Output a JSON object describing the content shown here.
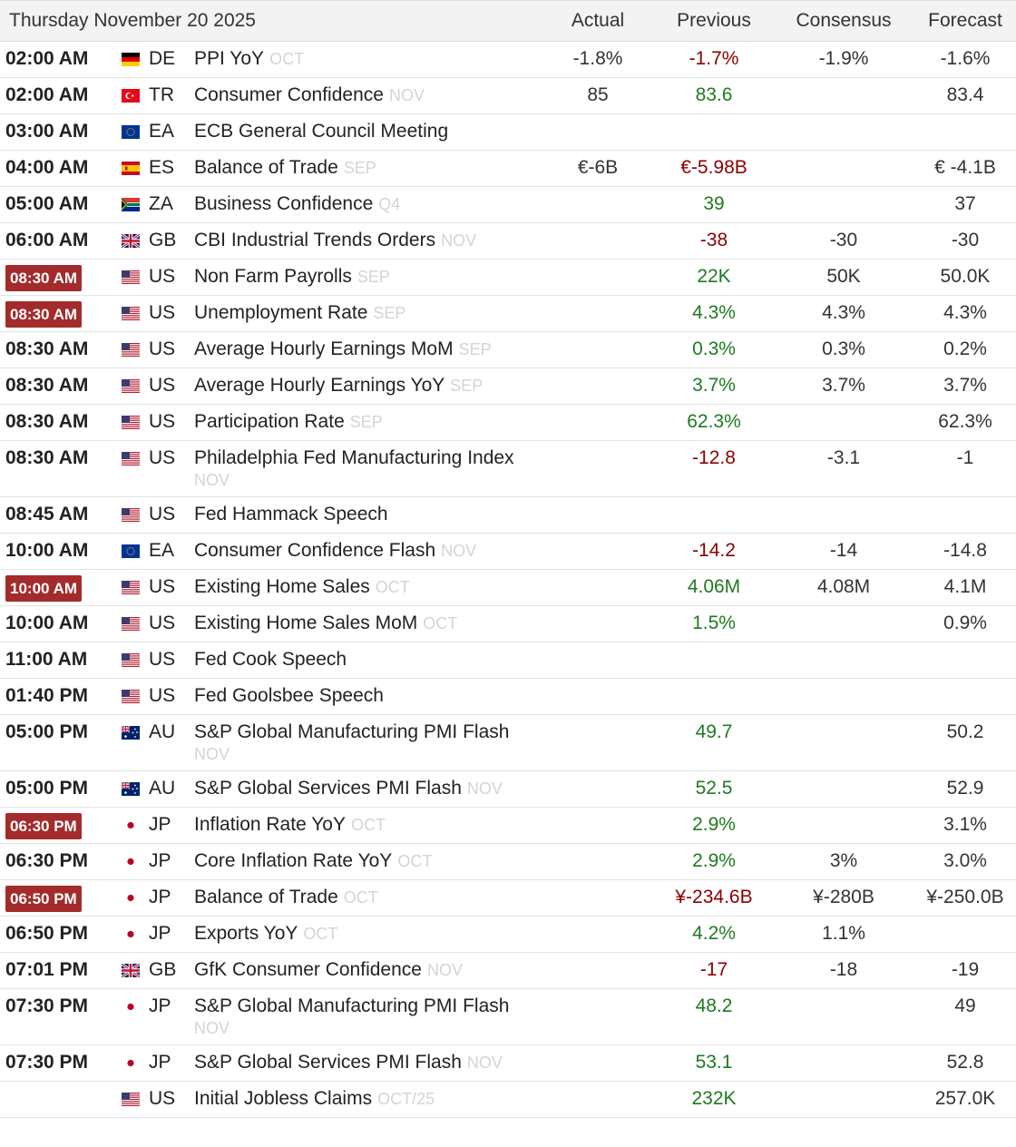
{
  "header": {
    "date": "Thursday November 20 2025",
    "actual": "Actual",
    "previous": "Previous",
    "consensus": "Consensus",
    "forecast": "Forecast"
  },
  "colors": {
    "badge": "#a42b2b",
    "negative": "#8b0000",
    "positive": "#1f7a1f",
    "reference": "#d4d4d4"
  },
  "rows": [
    {
      "time": "02:00 AM",
      "highlight": false,
      "flag": "de",
      "country": "DE",
      "event": "PPI YoY",
      "ref": "OCT",
      "actual": "-1.8%",
      "previous": "-1.7%",
      "prevColor": "red",
      "consensus": "-1.9%",
      "forecast": "-1.6%"
    },
    {
      "time": "02:00 AM",
      "highlight": false,
      "flag": "tr",
      "country": "TR",
      "event": "Consumer Confidence",
      "ref": "NOV",
      "actual": "85",
      "previous": "83.6",
      "prevColor": "green",
      "consensus": "",
      "forecast": "83.4"
    },
    {
      "time": "03:00 AM",
      "highlight": false,
      "flag": "eu",
      "country": "EA",
      "event": "ECB General Council Meeting",
      "ref": "",
      "actual": "",
      "previous": "",
      "prevColor": "",
      "consensus": "",
      "forecast": ""
    },
    {
      "time": "04:00 AM",
      "highlight": false,
      "flag": "es",
      "country": "ES",
      "event": "Balance of Trade",
      "ref": "SEP",
      "actual": "€-6B",
      "previous": "€-5.98B",
      "prevColor": "red",
      "consensus": "",
      "forecast": "€ -4.1B"
    },
    {
      "time": "05:00 AM",
      "highlight": false,
      "flag": "za",
      "country": "ZA",
      "event": "Business Confidence",
      "ref": "Q4",
      "actual": "",
      "previous": "39",
      "prevColor": "green",
      "consensus": "",
      "forecast": "37"
    },
    {
      "time": "06:00 AM",
      "highlight": false,
      "flag": "gb",
      "country": "GB",
      "event": "CBI Industrial Trends Orders",
      "ref": "NOV",
      "actual": "",
      "previous": "-38",
      "prevColor": "red",
      "consensus": "-30",
      "forecast": "-30"
    },
    {
      "time": "08:30 AM",
      "highlight": true,
      "flag": "us",
      "country": "US",
      "event": "Non Farm Payrolls",
      "ref": "SEP",
      "actual": "",
      "previous": "22K",
      "prevColor": "green",
      "consensus": "50K",
      "forecast": "50.0K"
    },
    {
      "time": "08:30 AM",
      "highlight": true,
      "flag": "us",
      "country": "US",
      "event": "Unemployment Rate",
      "ref": "SEP",
      "actual": "",
      "previous": "4.3%",
      "prevColor": "green",
      "consensus": "4.3%",
      "forecast": "4.3%"
    },
    {
      "time": "08:30 AM",
      "highlight": false,
      "flag": "us",
      "country": "US",
      "event": "Average Hourly Earnings MoM",
      "ref": "SEP",
      "actual": "",
      "previous": "0.3%",
      "prevColor": "green",
      "consensus": "0.3%",
      "forecast": "0.2%"
    },
    {
      "time": "08:30 AM",
      "highlight": false,
      "flag": "us",
      "country": "US",
      "event": "Average Hourly Earnings YoY",
      "ref": "SEP",
      "actual": "",
      "previous": "3.7%",
      "prevColor": "green",
      "consensus": "3.7%",
      "forecast": "3.7%"
    },
    {
      "time": "08:30 AM",
      "highlight": false,
      "flag": "us",
      "country": "US",
      "event": "Participation Rate",
      "ref": "SEP",
      "actual": "",
      "previous": "62.3%",
      "prevColor": "green",
      "consensus": "",
      "forecast": "62.3%"
    },
    {
      "time": "08:30 AM",
      "highlight": false,
      "flag": "us",
      "country": "US",
      "event": "Philadelphia Fed Manufacturing Index",
      "ref": "NOV",
      "refBlock": true,
      "actual": "",
      "previous": "-12.8",
      "prevColor": "red",
      "consensus": "-3.1",
      "forecast": "-1"
    },
    {
      "time": "08:45 AM",
      "highlight": false,
      "flag": "us",
      "country": "US",
      "event": "Fed Hammack Speech",
      "ref": "",
      "actual": "",
      "previous": "",
      "prevColor": "",
      "consensus": "",
      "forecast": ""
    },
    {
      "time": "10:00 AM",
      "highlight": false,
      "flag": "eu",
      "country": "EA",
      "event": "Consumer Confidence Flash",
      "ref": "NOV",
      "actual": "",
      "previous": "-14.2",
      "prevColor": "red",
      "consensus": "-14",
      "forecast": "-14.8"
    },
    {
      "time": "10:00 AM",
      "highlight": true,
      "flag": "us",
      "country": "US",
      "event": "Existing Home Sales",
      "ref": "OCT",
      "actual": "",
      "previous": "4.06M",
      "prevColor": "green",
      "consensus": "4.08M",
      "forecast": "4.1M"
    },
    {
      "time": "10:00 AM",
      "highlight": false,
      "flag": "us",
      "country": "US",
      "event": "Existing Home Sales MoM",
      "ref": "OCT",
      "actual": "",
      "previous": "1.5%",
      "prevColor": "green",
      "consensus": "",
      "forecast": "0.9%"
    },
    {
      "time": "11:00 AM",
      "highlight": false,
      "flag": "us",
      "country": "US",
      "event": "Fed Cook Speech",
      "ref": "",
      "actual": "",
      "previous": "",
      "prevColor": "",
      "consensus": "",
      "forecast": ""
    },
    {
      "time": "01:40 PM",
      "highlight": false,
      "flag": "us",
      "country": "US",
      "event": "Fed Goolsbee Speech",
      "ref": "",
      "actual": "",
      "previous": "",
      "prevColor": "",
      "consensus": "",
      "forecast": ""
    },
    {
      "time": "05:00 PM",
      "highlight": false,
      "flag": "au",
      "country": "AU",
      "event": "S&P Global Manufacturing PMI Flash",
      "ref": "NOV",
      "refBlock": true,
      "actual": "",
      "previous": "49.7",
      "prevColor": "green",
      "consensus": "",
      "forecast": "50.2"
    },
    {
      "time": "05:00 PM",
      "highlight": false,
      "flag": "au",
      "country": "AU",
      "event": "S&P Global Services PMI Flash",
      "ref": "NOV",
      "actual": "",
      "previous": "52.5",
      "prevColor": "green",
      "consensus": "",
      "forecast": "52.9"
    },
    {
      "time": "06:30 PM",
      "highlight": true,
      "flag": "jp",
      "country": "JP",
      "event": "Inflation Rate YoY",
      "ref": "OCT",
      "actual": "",
      "previous": "2.9%",
      "prevColor": "green",
      "consensus": "",
      "forecast": "3.1%"
    },
    {
      "time": "06:30 PM",
      "highlight": false,
      "flag": "jp",
      "country": "JP",
      "event": "Core Inflation Rate YoY",
      "ref": "OCT",
      "actual": "",
      "previous": "2.9%",
      "prevColor": "green",
      "consensus": "3%",
      "forecast": "3.0%"
    },
    {
      "time": "06:50 PM",
      "highlight": true,
      "flag": "jp",
      "country": "JP",
      "event": "Balance of Trade",
      "ref": "OCT",
      "actual": "",
      "previous": "¥-234.6B",
      "prevColor": "red",
      "consensus": "¥-280B",
      "forecast": "¥-250.0B"
    },
    {
      "time": "06:50 PM",
      "highlight": false,
      "flag": "jp",
      "country": "JP",
      "event": "Exports YoY",
      "ref": "OCT",
      "actual": "",
      "previous": "4.2%",
      "prevColor": "green",
      "consensus": "1.1%",
      "forecast": ""
    },
    {
      "time": "07:01 PM",
      "highlight": false,
      "flag": "gb",
      "country": "GB",
      "event": "GfK Consumer Confidence",
      "ref": "NOV",
      "actual": "",
      "previous": "-17",
      "prevColor": "red",
      "consensus": "-18",
      "forecast": "-19"
    },
    {
      "time": "07:30 PM",
      "highlight": false,
      "flag": "jp",
      "country": "JP",
      "event": "S&P Global Manufacturing PMI Flash",
      "ref": "NOV",
      "refBlock": true,
      "actual": "",
      "previous": "48.2",
      "prevColor": "green",
      "consensus": "",
      "forecast": "49"
    },
    {
      "time": "07:30 PM",
      "highlight": false,
      "flag": "jp",
      "country": "JP",
      "event": "S&P Global Services PMI Flash",
      "ref": "NOV",
      "actual": "",
      "previous": "53.1",
      "prevColor": "green",
      "consensus": "",
      "forecast": "52.8"
    },
    {
      "time": "",
      "highlight": false,
      "flag": "us",
      "country": "US",
      "event": "Initial Jobless Claims",
      "ref": "OCT/25",
      "actual": "",
      "previous": "232K",
      "prevColor": "green",
      "consensus": "",
      "forecast": "257.0K"
    }
  ]
}
